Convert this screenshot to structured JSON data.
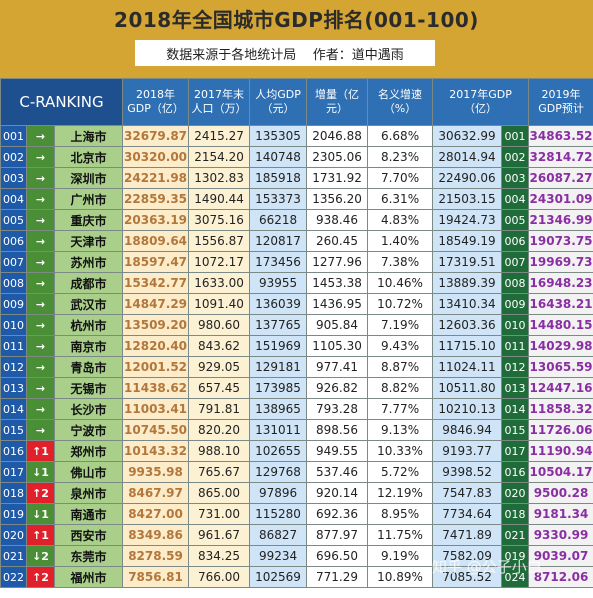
{
  "title": "2018年全国城市GDP排名(001-100)",
  "source_line": "数据来源于各地统计局    作者：道中遇雨",
  "headers": {
    "c_ranking": "C-RANKING",
    "gdp2018": "2018年\nGDP（亿）",
    "pop2017": "2017年末\n人口（万）",
    "per_capita": "人均GDP\n（元）",
    "increase": "增量（亿\n元）",
    "nominal_rate": "名义增速\n（%）",
    "gdp2017": "2017年GDP\n（亿）",
    "pred2019": "2019年\nGDP预计"
  },
  "rows": [
    {
      "no": "001",
      "arrow": "→",
      "arrow_type": "same",
      "city": "上海市",
      "gdp2018": "32679.87",
      "pop": "2415.27",
      "per_capita": "135305",
      "increase": "2046.88",
      "rate": "6.68%",
      "gdp2017": "30632.99",
      "rank2017": "001",
      "pred2019": "34863.52"
    },
    {
      "no": "002",
      "arrow": "→",
      "arrow_type": "same",
      "city": "北京市",
      "gdp2018": "30320.00",
      "pop": "2154.20",
      "per_capita": "140748",
      "increase": "2305.06",
      "rate": "8.23%",
      "gdp2017": "28014.94",
      "rank2017": "002",
      "pred2019": "32814.72"
    },
    {
      "no": "003",
      "arrow": "→",
      "arrow_type": "same",
      "city": "深圳市",
      "gdp2018": "24221.98",
      "pop": "1302.83",
      "per_capita": "185918",
      "increase": "1731.92",
      "rate": "7.70%",
      "gdp2017": "22490.06",
      "rank2017": "003",
      "pred2019": "26087.27"
    },
    {
      "no": "004",
      "arrow": "→",
      "arrow_type": "same",
      "city": "广州市",
      "gdp2018": "22859.35",
      "pop": "1490.44",
      "per_capita": "153373",
      "increase": "1356.20",
      "rate": "6.31%",
      "gdp2017": "21503.15",
      "rank2017": "004",
      "pred2019": "24301.09"
    },
    {
      "no": "005",
      "arrow": "→",
      "arrow_type": "same",
      "city": "重庆市",
      "gdp2018": "20363.19",
      "pop": "3075.16",
      "per_capita": "66218",
      "increase": "938.46",
      "rate": "4.83%",
      "gdp2017": "19424.73",
      "rank2017": "005",
      "pred2019": "21346.99"
    },
    {
      "no": "006",
      "arrow": "→",
      "arrow_type": "same",
      "city": "天津市",
      "gdp2018": "18809.64",
      "pop": "1556.87",
      "per_capita": "120817",
      "increase": "260.45",
      "rate": "1.40%",
      "gdp2017": "18549.19",
      "rank2017": "006",
      "pred2019": "19073.75"
    },
    {
      "no": "007",
      "arrow": "→",
      "arrow_type": "same",
      "city": "苏州市",
      "gdp2018": "18597.47",
      "pop": "1072.17",
      "per_capita": "173456",
      "increase": "1277.96",
      "rate": "7.38%",
      "gdp2017": "17319.51",
      "rank2017": "007",
      "pred2019": "19969.73"
    },
    {
      "no": "008",
      "arrow": "→",
      "arrow_type": "same",
      "city": "成都市",
      "gdp2018": "15342.77",
      "pop": "1633.00",
      "per_capita": "93955",
      "increase": "1453.38",
      "rate": "10.46%",
      "gdp2017": "13889.39",
      "rank2017": "008",
      "pred2019": "16948.23"
    },
    {
      "no": "009",
      "arrow": "→",
      "arrow_type": "same",
      "city": "武汉市",
      "gdp2018": "14847.29",
      "pop": "1091.40",
      "per_capita": "136039",
      "increase": "1436.95",
      "rate": "10.72%",
      "gdp2017": "13410.34",
      "rank2017": "009",
      "pred2019": "16438.21"
    },
    {
      "no": "010",
      "arrow": "→",
      "arrow_type": "same",
      "city": "杭州市",
      "gdp2018": "13509.20",
      "pop": "980.60",
      "per_capita": "137765",
      "increase": "905.84",
      "rate": "7.19%",
      "gdp2017": "12603.36",
      "rank2017": "010",
      "pred2019": "14480.15"
    },
    {
      "no": "011",
      "arrow": "→",
      "arrow_type": "same",
      "city": "南京市",
      "gdp2018": "12820.40",
      "pop": "843.62",
      "per_capita": "151969",
      "increase": "1105.30",
      "rate": "9.43%",
      "gdp2017": "11715.10",
      "rank2017": "011",
      "pred2019": "14029.98"
    },
    {
      "no": "012",
      "arrow": "→",
      "arrow_type": "same",
      "city": "青岛市",
      "gdp2018": "12001.52",
      "pop": "929.05",
      "per_capita": "129181",
      "increase": "977.41",
      "rate": "8.87%",
      "gdp2017": "11024.11",
      "rank2017": "012",
      "pred2019": "13065.59"
    },
    {
      "no": "013",
      "arrow": "→",
      "arrow_type": "same",
      "city": "无锡市",
      "gdp2018": "11438.62",
      "pop": "657.45",
      "per_capita": "173985",
      "increase": "926.82",
      "rate": "8.82%",
      "gdp2017": "10511.80",
      "rank2017": "013",
      "pred2019": "12447.16"
    },
    {
      "no": "014",
      "arrow": "→",
      "arrow_type": "same",
      "city": "长沙市",
      "gdp2018": "11003.41",
      "pop": "791.81",
      "per_capita": "138965",
      "increase": "793.28",
      "rate": "7.77%",
      "gdp2017": "10210.13",
      "rank2017": "014",
      "pred2019": "11858.32"
    },
    {
      "no": "015",
      "arrow": "→",
      "arrow_type": "same",
      "city": "宁波市",
      "gdp2018": "10745.50",
      "pop": "820.20",
      "per_capita": "131011",
      "increase": "898.56",
      "rate": "9.13%",
      "gdp2017": "9846.94",
      "rank2017": "015",
      "pred2019": "11726.06"
    },
    {
      "no": "016",
      "arrow": "↑1",
      "arrow_type": "up",
      "city": "郑州市",
      "gdp2018": "10143.32",
      "pop": "988.10",
      "per_capita": "102655",
      "increase": "949.55",
      "rate": "10.33%",
      "gdp2017": "9193.77",
      "rank2017": "017",
      "pred2019": "11190.94"
    },
    {
      "no": "017",
      "arrow": "↓1",
      "arrow_type": "down",
      "city": "佛山市",
      "gdp2018": "9935.98",
      "pop": "765.67",
      "per_capita": "129768",
      "increase": "537.46",
      "rate": "5.72%",
      "gdp2017": "9398.52",
      "rank2017": "016",
      "pred2019": "10504.17"
    },
    {
      "no": "018",
      "arrow": "↑2",
      "arrow_type": "up",
      "city": "泉州市",
      "gdp2018": "8467.97",
      "pop": "865.00",
      "per_capita": "97896",
      "increase": "920.14",
      "rate": "12.19%",
      "gdp2017": "7547.83",
      "rank2017": "020",
      "pred2019": "9500.28"
    },
    {
      "no": "019",
      "arrow": "↓1",
      "arrow_type": "down",
      "city": "南通市",
      "gdp2018": "8427.00",
      "pop": "731.00",
      "per_capita": "115280",
      "increase": "692.36",
      "rate": "8.95%",
      "gdp2017": "7734.64",
      "rank2017": "018",
      "pred2019": "9181.34"
    },
    {
      "no": "020",
      "arrow": "↑1",
      "arrow_type": "up",
      "city": "西安市",
      "gdp2018": "8349.86",
      "pop": "961.67",
      "per_capita": "86827",
      "increase": "877.97",
      "rate": "11.75%",
      "gdp2017": "7471.89",
      "rank2017": "021",
      "pred2019": "9330.99"
    },
    {
      "no": "021",
      "arrow": "↓2",
      "arrow_type": "down",
      "city": "东莞市",
      "gdp2018": "8278.59",
      "pop": "834.25",
      "per_capita": "99234",
      "increase": "696.50",
      "rate": "9.19%",
      "gdp2017": "7582.09",
      "rank2017": "019",
      "pred2019": "9039.07"
    },
    {
      "no": "022",
      "arrow": "↑2",
      "arrow_type": "up",
      "city": "福州市",
      "gdp2018": "7856.81",
      "pop": "766.00",
      "per_capita": "102569",
      "increase": "771.29",
      "rate": "10.89%",
      "gdp2017": "7085.52",
      "rank2017": "024",
      "pred2019": "8712.06"
    }
  ],
  "watermark": "知乎 @公子小白"
}
